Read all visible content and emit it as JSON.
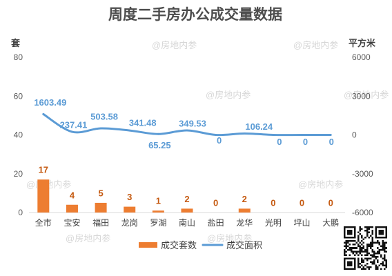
{
  "chart_data": {
    "type": "bar",
    "title": "周度二手房办公成交量数据",
    "categories": [
      "全市",
      "宝安",
      "福田",
      "龙岗",
      "罗湖",
      "南山",
      "盐田",
      "龙华",
      "光明",
      "坪山",
      "大鹏"
    ],
    "series": [
      {
        "name": "成交套数",
        "type": "bar",
        "y_axis": "left",
        "color": "#ED7D31",
        "label_color": "#C55A11",
        "values": [
          17,
          4,
          5,
          3,
          1,
          2,
          0,
          2,
          0,
          0,
          0
        ]
      },
      {
        "name": "成交面积",
        "type": "line",
        "y_axis": "right",
        "color": "#5B9BD5",
        "label_color": "#5B9BD5",
        "values": [
          1603.49,
          237.41,
          503.58,
          341.48,
          65.25,
          349.53,
          0,
          106.24,
          0,
          0,
          0
        ]
      }
    ],
    "ylabel": "套",
    "y2label": "平方米",
    "ylim": [
      0,
      80
    ],
    "yticks": [
      0,
      20,
      40,
      60,
      80
    ],
    "y2lim": [
      -6000,
      6000
    ],
    "y2ticks": [
      -6000,
      -3000,
      0,
      3000,
      6000
    ],
    "grid": false,
    "legend": "bottom"
  },
  "watermark": "@房地内参"
}
